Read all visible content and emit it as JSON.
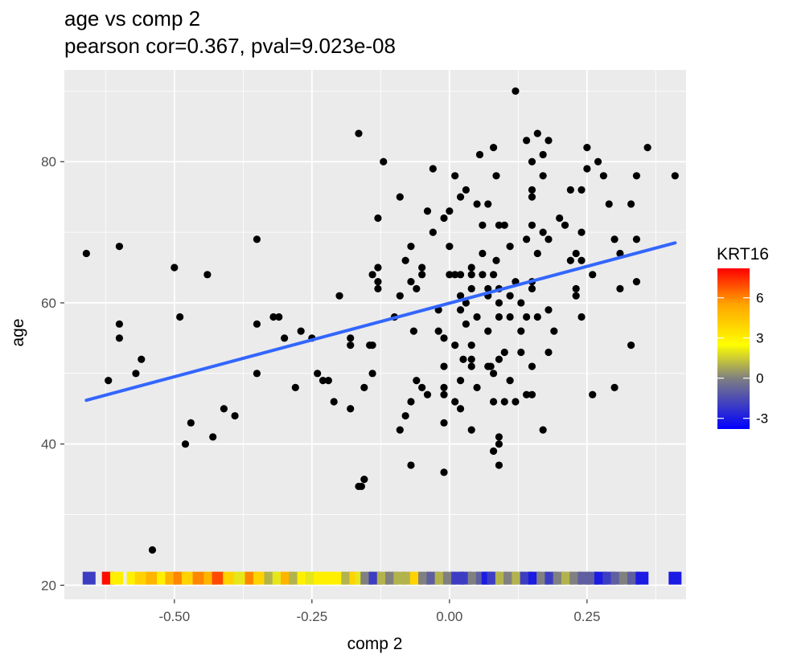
{
  "chart_data": {
    "type": "scatter",
    "title": "age vs comp 2",
    "subtitle": "pearson cor=0.367, pval=9.023e-08",
    "xlabel": "comp 2",
    "ylabel": "age",
    "xlim": [
      -0.7,
      0.43
    ],
    "ylim": [
      18,
      93
    ],
    "x_ticks": [
      -0.5,
      -0.25,
      0.0,
      0.25
    ],
    "x_tick_labels": [
      "-0.50",
      "-0.25",
      "0.00",
      "0.25"
    ],
    "y_ticks": [
      20,
      40,
      60,
      80
    ],
    "y_tick_labels": [
      "20",
      "40",
      "60",
      "80"
    ],
    "grid": true,
    "background": "#ebebeb",
    "point_color": "#000000",
    "trend_line": {
      "color": "#3366ff",
      "x": [
        -0.66,
        0.41
      ],
      "y": [
        46.2,
        68.5
      ]
    },
    "points": [
      [
        -0.66,
        67
      ],
      [
        -0.62,
        49
      ],
      [
        -0.6,
        68
      ],
      [
        -0.6,
        57
      ],
      [
        -0.6,
        55
      ],
      [
        -0.56,
        52
      ],
      [
        -0.57,
        50
      ],
      [
        -0.54,
        25
      ],
      [
        -0.5,
        65
      ],
      [
        -0.49,
        58
      ],
      [
        -0.48,
        40
      ],
      [
        -0.47,
        43
      ],
      [
        -0.44,
        64
      ],
      [
        -0.43,
        41
      ],
      [
        -0.41,
        45
      ],
      [
        -0.39,
        44
      ],
      [
        -0.35,
        69
      ],
      [
        -0.35,
        57
      ],
      [
        -0.35,
        50
      ],
      [
        -0.32,
        58
      ],
      [
        -0.31,
        58
      ],
      [
        -0.3,
        55
      ],
      [
        -0.28,
        48
      ],
      [
        -0.27,
        56
      ],
      [
        -0.25,
        55
      ],
      [
        -0.24,
        50
      ],
      [
        -0.23,
        49
      ],
      [
        -0.22,
        49
      ],
      [
        -0.21,
        46
      ],
      [
        -0.2,
        61
      ],
      [
        -0.18,
        55
      ],
      [
        -0.18,
        54
      ],
      [
        -0.18,
        45
      ],
      [
        -0.165,
        84
      ],
      [
        -0.165,
        34
      ],
      [
        -0.16,
        34
      ],
      [
        -0.155,
        48
      ],
      [
        -0.155,
        35
      ],
      [
        -0.145,
        54
      ],
      [
        -0.14,
        54
      ],
      [
        -0.14,
        50
      ],
      [
        -0.14,
        64
      ],
      [
        -0.13,
        72
      ],
      [
        -0.13,
        65
      ],
      [
        -0.13,
        63
      ],
      [
        -0.13,
        62
      ],
      [
        -0.12,
        80
      ],
      [
        -0.1,
        58
      ],
      [
        -0.09,
        61
      ],
      [
        -0.09,
        75
      ],
      [
        -0.09,
        42
      ],
      [
        -0.08,
        66
      ],
      [
        -0.08,
        44
      ],
      [
        -0.07,
        68
      ],
      [
        -0.07,
        63
      ],
      [
        -0.07,
        46
      ],
      [
        -0.07,
        37
      ],
      [
        -0.065,
        56
      ],
      [
        -0.06,
        49
      ],
      [
        -0.06,
        62
      ],
      [
        -0.05,
        65
      ],
      [
        -0.05,
        64
      ],
      [
        -0.05,
        48
      ],
      [
        -0.04,
        73
      ],
      [
        -0.04,
        47
      ],
      [
        -0.03,
        70
      ],
      [
        -0.03,
        79
      ],
      [
        -0.02,
        59
      ],
      [
        -0.02,
        56
      ],
      [
        -0.01,
        48
      ],
      [
        -0.01,
        47
      ],
      [
        -0.01,
        55
      ],
      [
        -0.01,
        51
      ],
      [
        -0.01,
        43
      ],
      [
        -0.01,
        36
      ],
      [
        -0.01,
        72
      ],
      [
        0.0,
        73
      ],
      [
        0.0,
        68
      ],
      [
        0.0,
        64
      ],
      [
        0.01,
        78
      ],
      [
        0.01,
        64
      ],
      [
        0.01,
        54
      ],
      [
        0.01,
        46
      ],
      [
        0.02,
        75
      ],
      [
        0.02,
        64
      ],
      [
        0.02,
        61
      ],
      [
        0.02,
        59
      ],
      [
        0.02,
        49
      ],
      [
        0.02,
        45
      ],
      [
        0.025,
        52
      ],
      [
        0.03,
        76
      ],
      [
        0.03,
        60
      ],
      [
        0.03,
        57
      ],
      [
        0.04,
        65
      ],
      [
        0.04,
        64
      ],
      [
        0.04,
        62
      ],
      [
        0.04,
        54
      ],
      [
        0.04,
        52
      ],
      [
        0.04,
        51
      ],
      [
        0.04,
        42
      ],
      [
        0.05,
        74
      ],
      [
        0.05,
        58
      ],
      [
        0.05,
        48
      ],
      [
        0.055,
        81
      ],
      [
        0.06,
        71
      ],
      [
        0.06,
        67
      ],
      [
        0.06,
        64
      ],
      [
        0.07,
        74
      ],
      [
        0.07,
        62
      ],
      [
        0.07,
        61
      ],
      [
        0.07,
        56
      ],
      [
        0.07,
        51
      ],
      [
        0.075,
        51
      ],
      [
        0.08,
        82
      ],
      [
        0.08,
        64
      ],
      [
        0.08,
        50
      ],
      [
        0.08,
        46
      ],
      [
        0.08,
        39
      ],
      [
        0.085,
        78
      ],
      [
        0.085,
        66
      ],
      [
        0.09,
        71
      ],
      [
        0.09,
        62
      ],
      [
        0.09,
        60
      ],
      [
        0.09,
        58
      ],
      [
        0.09,
        52
      ],
      [
        0.09,
        41
      ],
      [
        0.09,
        40
      ],
      [
        0.09,
        37
      ],
      [
        0.1,
        71
      ],
      [
        0.1,
        53
      ],
      [
        0.1,
        46
      ],
      [
        0.11,
        68
      ],
      [
        0.11,
        61
      ],
      [
        0.11,
        58
      ],
      [
        0.11,
        49
      ],
      [
        0.12,
        90
      ],
      [
        0.12,
        63
      ],
      [
        0.12,
        46
      ],
      [
        0.13,
        60
      ],
      [
        0.13,
        56
      ],
      [
        0.13,
        53
      ],
      [
        0.14,
        83
      ],
      [
        0.14,
        69
      ],
      [
        0.14,
        58
      ],
      [
        0.14,
        47
      ],
      [
        0.15,
        80
      ],
      [
        0.15,
        76
      ],
      [
        0.15,
        75
      ],
      [
        0.15,
        71
      ],
      [
        0.15,
        63
      ],
      [
        0.15,
        62
      ],
      [
        0.15,
        51
      ],
      [
        0.15,
        47
      ],
      [
        0.16,
        84
      ],
      [
        0.16,
        67
      ],
      [
        0.16,
        58
      ],
      [
        0.17,
        81
      ],
      [
        0.17,
        78
      ],
      [
        0.17,
        70
      ],
      [
        0.17,
        42
      ],
      [
        0.18,
        83
      ],
      [
        0.18,
        69
      ],
      [
        0.18,
        59
      ],
      [
        0.18,
        53
      ],
      [
        0.19,
        56
      ],
      [
        0.2,
        72
      ],
      [
        0.21,
        71
      ],
      [
        0.22,
        76
      ],
      [
        0.22,
        66
      ],
      [
        0.23,
        67
      ],
      [
        0.23,
        62
      ],
      [
        0.23,
        61
      ],
      [
        0.24,
        70
      ],
      [
        0.24,
        76
      ],
      [
        0.24,
        66
      ],
      [
        0.24,
        58
      ],
      [
        0.25,
        82
      ],
      [
        0.25,
        79
      ],
      [
        0.26,
        64
      ],
      [
        0.26,
        47
      ],
      [
        0.27,
        80
      ],
      [
        0.28,
        78
      ],
      [
        0.29,
        74
      ],
      [
        0.3,
        69
      ],
      [
        0.3,
        48
      ],
      [
        0.31,
        67
      ],
      [
        0.31,
        62
      ],
      [
        0.33,
        74
      ],
      [
        0.33,
        54
      ],
      [
        0.34,
        78
      ],
      [
        0.34,
        69
      ],
      [
        0.34,
        63
      ],
      [
        0.36,
        82
      ],
      [
        0.41,
        78
      ]
    ],
    "rug": {
      "y": 21,
      "color_variable": "KRT16",
      "x": [
        -0.655,
        -0.62,
        -0.605,
        -0.575,
        -0.56,
        -0.54,
        -0.52,
        -0.505,
        -0.49,
        -0.475,
        -0.455,
        -0.435,
        -0.42,
        -0.4,
        -0.38,
        -0.36,
        -0.345,
        -0.325,
        -0.31,
        -0.295,
        -0.28,
        -0.265,
        -0.25,
        -0.235,
        -0.22,
        -0.2,
        -0.185,
        -0.17,
        -0.16,
        -0.15,
        -0.135,
        -0.12,
        -0.105,
        -0.09,
        -0.075,
        -0.06,
        -0.045,
        -0.03,
        -0.015,
        0.0,
        0.015,
        0.03,
        0.045,
        0.06,
        0.07,
        0.08,
        0.095,
        0.11,
        0.125,
        0.14,
        0.155,
        0.17,
        0.185,
        0.2,
        0.215,
        0.23,
        0.245,
        0.26,
        0.275,
        0.29,
        0.305,
        0.32,
        0.335,
        0.35,
        0.41
      ],
      "values": [
        -2,
        8,
        3,
        3,
        4,
        5,
        3,
        5,
        6,
        4,
        6,
        5,
        7,
        4,
        2,
        6,
        4,
        1,
        2,
        5,
        1,
        3,
        2,
        3,
        3,
        3,
        1,
        4,
        2,
        0,
        -2,
        1,
        0,
        1,
        1,
        4,
        0,
        -1,
        1,
        0,
        -2,
        -2,
        0,
        -1,
        -3,
        -2,
        1,
        0,
        1,
        -2,
        -3,
        0,
        -2,
        0,
        1,
        0,
        -1,
        -1,
        -3,
        -2,
        -1,
        0,
        -1,
        -3,
        -3
      ]
    },
    "legend": {
      "title": "KRT16",
      "position": "right",
      "breaks": [
        6,
        3,
        0,
        -3
      ],
      "break_labels": [
        "6",
        "3",
        "0",
        "-3"
      ],
      "range": [
        -3.8,
        8.2
      ],
      "gradient": [
        {
          "value": -3.8,
          "color": "#0000ff"
        },
        {
          "value": 0,
          "color": "#808080"
        },
        {
          "value": 2.5,
          "color": "#ffff00"
        },
        {
          "value": 5.5,
          "color": "#ffa500"
        },
        {
          "value": 8.2,
          "color": "#ff0000"
        }
      ]
    }
  }
}
